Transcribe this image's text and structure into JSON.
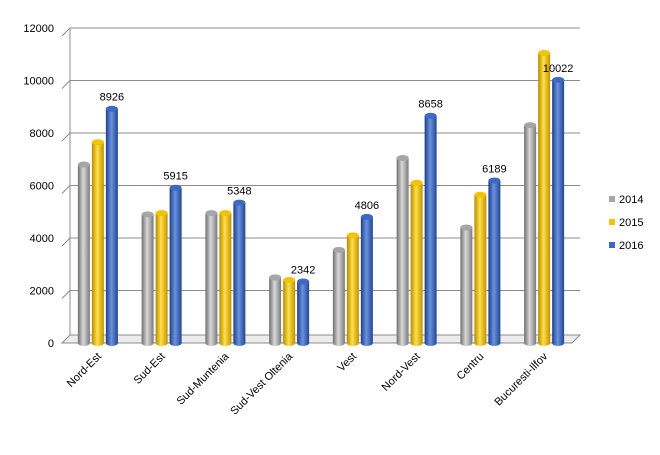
{
  "chart_data": {
    "type": "bar",
    "title": "",
    "xlabel": "",
    "ylabel": "",
    "ylim": [
      0,
      12000
    ],
    "yticks": [
      0,
      2000,
      4000,
      6000,
      8000,
      10000,
      12000
    ],
    "grid": true,
    "legend_position": "right",
    "categories": [
      "Nord-Est",
      "Sud-Est",
      "Sud-Muntenia",
      "Sud-Vest Oltenia",
      "Vest",
      "Nord-Vest",
      "Centru",
      "Bucuresti-Ilfov"
    ],
    "series": [
      {
        "name": "2014",
        "color": "#a6a6a6",
        "values": [
          6800,
          4900,
          4950,
          2500,
          3550,
          7050,
          4400,
          8300
        ]
      },
      {
        "name": "2015",
        "color": "#f2c300",
        "values": [
          7650,
          4950,
          4950,
          2400,
          4100,
          6100,
          5650,
          11050
        ]
      },
      {
        "name": "2016",
        "color": "#3d69c4",
        "values": [
          8926,
          5915,
          5348,
          2342,
          4806,
          8658,
          6189,
          10022
        ]
      }
    ],
    "data_labels": [
      "8926",
      "5915",
      "5348",
      "2342",
      "4806",
      "8658",
      "6189",
      "10022"
    ]
  }
}
